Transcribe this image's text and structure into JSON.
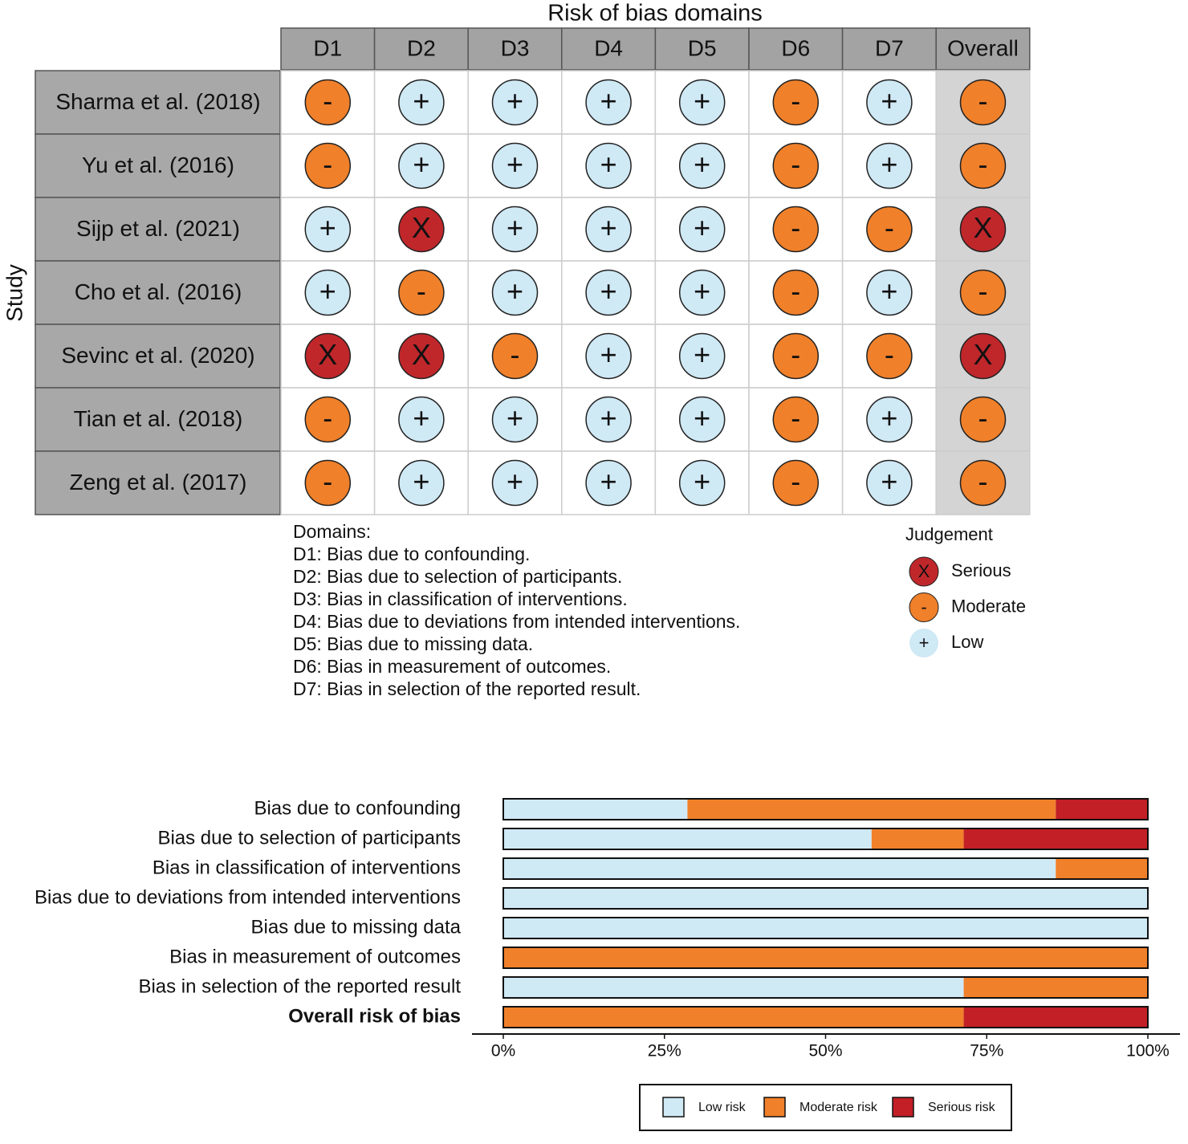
{
  "chart_data": [
    {
      "type": "traffic-light",
      "title": "Risk of bias domains",
      "y_label": "Study",
      "columns": [
        "D1",
        "D2",
        "D3",
        "D4",
        "D5",
        "D6",
        "D7",
        "Overall"
      ],
      "rows": [
        "Sharma et al. (2018)",
        "Yu et al. (2016)",
        "Sijp et al. (2021)",
        "Cho et al. (2016)",
        "Sevinc et al. (2020)",
        "Tian et al. (2018)",
        "Zeng et al. (2017)"
      ],
      "judgements": [
        [
          "-",
          "+",
          "+",
          "+",
          "+",
          "-",
          "+",
          "-"
        ],
        [
          "-",
          "+",
          "+",
          "+",
          "+",
          "-",
          "+",
          "-"
        ],
        [
          "+",
          "X",
          "+",
          "+",
          "+",
          "-",
          "-",
          "X"
        ],
        [
          "+",
          "-",
          "+",
          "+",
          "+",
          "-",
          "+",
          "-"
        ],
        [
          "X",
          "X",
          "-",
          "+",
          "+",
          "-",
          "-",
          "X"
        ],
        [
          "-",
          "+",
          "+",
          "+",
          "+",
          "-",
          "+",
          "-"
        ],
        [
          "-",
          "+",
          "+",
          "+",
          "+",
          "-",
          "+",
          "-"
        ]
      ],
      "domains_title": "Domains:",
      "domains": [
        "D1: Bias due to confounding.",
        "D2: Bias due to selection of participants.",
        "D3: Bias in classification of interventions.",
        "D4: Bias due to deviations from intended interventions.",
        "D5: Bias due to missing data.",
        "D6: Bias in measurement of outcomes.",
        "D7: Bias in selection of the reported result."
      ],
      "legend_title": "Judgement",
      "levels": [
        {
          "name": "Serious",
          "symbol": "X",
          "color": "#c0272b"
        },
        {
          "name": "Moderate",
          "symbol": "-",
          "color": "#f0802a"
        },
        {
          "name": "Low",
          "symbol": "+",
          "color": "#cfe9f5"
        }
      ]
    },
    {
      "type": "stacked-barh",
      "categories": [
        "Bias due to confounding",
        "Bias due to selection of participants",
        "Bias in classification of interventions",
        "Bias due to deviations from intended interventions",
        "Bias due to missing data",
        "Bias in measurement of outcomes",
        "Bias in selection of the reported result",
        "Overall risk of bias"
      ],
      "bold_category": 7,
      "series": [
        {
          "name": "Low risk",
          "color": "#cfe9f5",
          "values": [
            28.57,
            57.14,
            85.71,
            100,
            100,
            0,
            71.43,
            0
          ]
        },
        {
          "name": "Moderate risk",
          "color": "#f0802a",
          "values": [
            57.14,
            14.29,
            14.29,
            0,
            0,
            100,
            28.57,
            71.43
          ]
        },
        {
          "name": "Serious risk",
          "color": "#c21f26",
          "values": [
            14.29,
            28.57,
            0,
            0,
            0,
            0,
            0,
            28.57
          ]
        }
      ],
      "xlim": [
        0,
        100
      ],
      "xticks": [
        {
          "value": 0,
          "label": "0%"
        },
        {
          "value": 25,
          "label": "25%"
        },
        {
          "value": 50,
          "label": "50%"
        },
        {
          "value": 75,
          "label": "75%"
        },
        {
          "value": 100,
          "label": "100%"
        }
      ]
    }
  ]
}
